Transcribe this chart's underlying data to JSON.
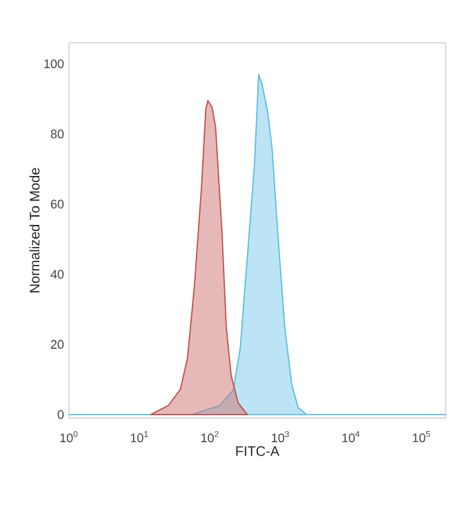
{
  "chart_data": {
    "type": "area",
    "xlabel": "FITC-A",
    "ylabel": "Normalized To Mode",
    "log": "x",
    "xlim": [
      1,
      220000
    ],
    "ylim": [
      -1,
      106
    ],
    "xticks": [
      {
        "value": 1,
        "label": "10$^{0}$"
      },
      {
        "value": 10,
        "label": "10$^{1}$"
      },
      {
        "value": 100,
        "label": "10$^{2}$"
      },
      {
        "value": 1000,
        "label": "10$^{3}$"
      },
      {
        "value": 10000,
        "label": "10$^{4}$"
      },
      {
        "value": 100000,
        "label": "10$^{5}$"
      }
    ],
    "yticks": [
      0,
      20,
      40,
      60,
      80,
      100
    ],
    "grid": false,
    "series": [
      {
        "color": "#5bbde4",
        "x": [
          1,
          56,
          138,
          214,
          269,
          339,
          427,
          490,
          550,
          661,
          759,
          912,
          1148,
          1445,
          1778,
          2344,
          220000
        ],
        "values": [
          0,
          0,
          2.6,
          7,
          19,
          45,
          71,
          97,
          94,
          86,
          76,
          52,
          25,
          8.5,
          2,
          0,
          0
        ]
      },
      {
        "color": "#c0504d",
        "x": [
          14.5,
          25.7,
          38,
          47.9,
          60.3,
          75.9,
          87.1,
          93.3,
          107,
          120,
          148,
          170,
          200,
          251,
          339
        ],
        "values": [
          0,
          2.6,
          7.2,
          16,
          37,
          65,
          87,
          89.5,
          87.6,
          82,
          52,
          25,
          11,
          3.3,
          0
        ]
      }
    ]
  }
}
